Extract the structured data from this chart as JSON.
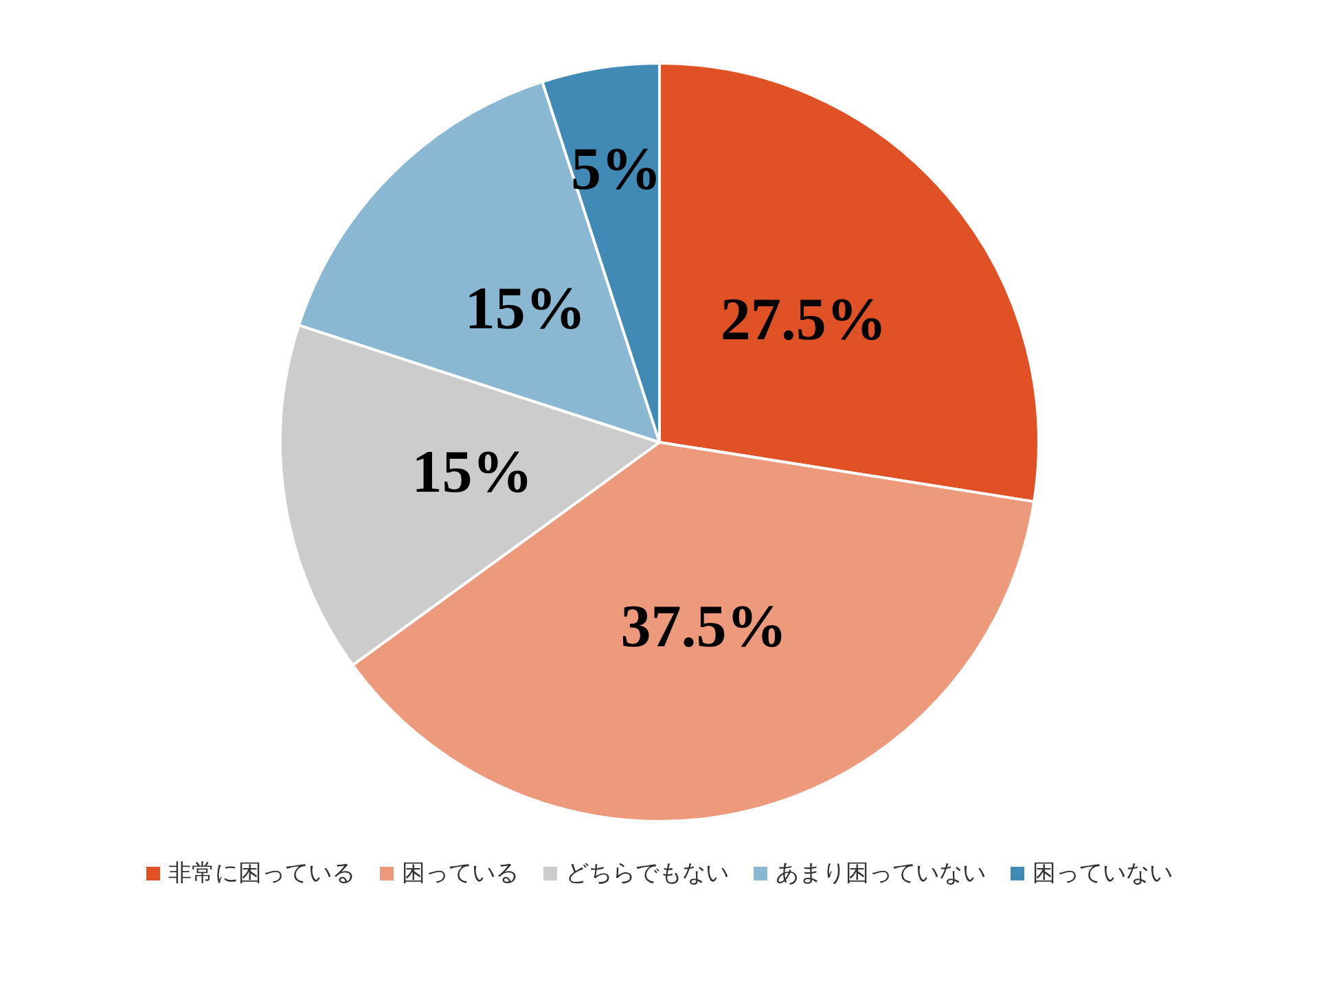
{
  "chart_data": {
    "type": "pie",
    "categories": [
      "非常に困っている",
      "困っている",
      "どちらでもない",
      "あまり困っていない",
      "困っていない"
    ],
    "values": [
      27.5,
      37.5,
      15,
      15,
      5
    ],
    "value_labels": [
      "27.5%",
      "37.5%",
      "15%",
      "15%",
      "5%"
    ],
    "colors": [
      "#e05226",
      "#ec997c",
      "#cccccc",
      "#8ab8d3",
      "#418ab5"
    ],
    "legend": "bottom"
  }
}
